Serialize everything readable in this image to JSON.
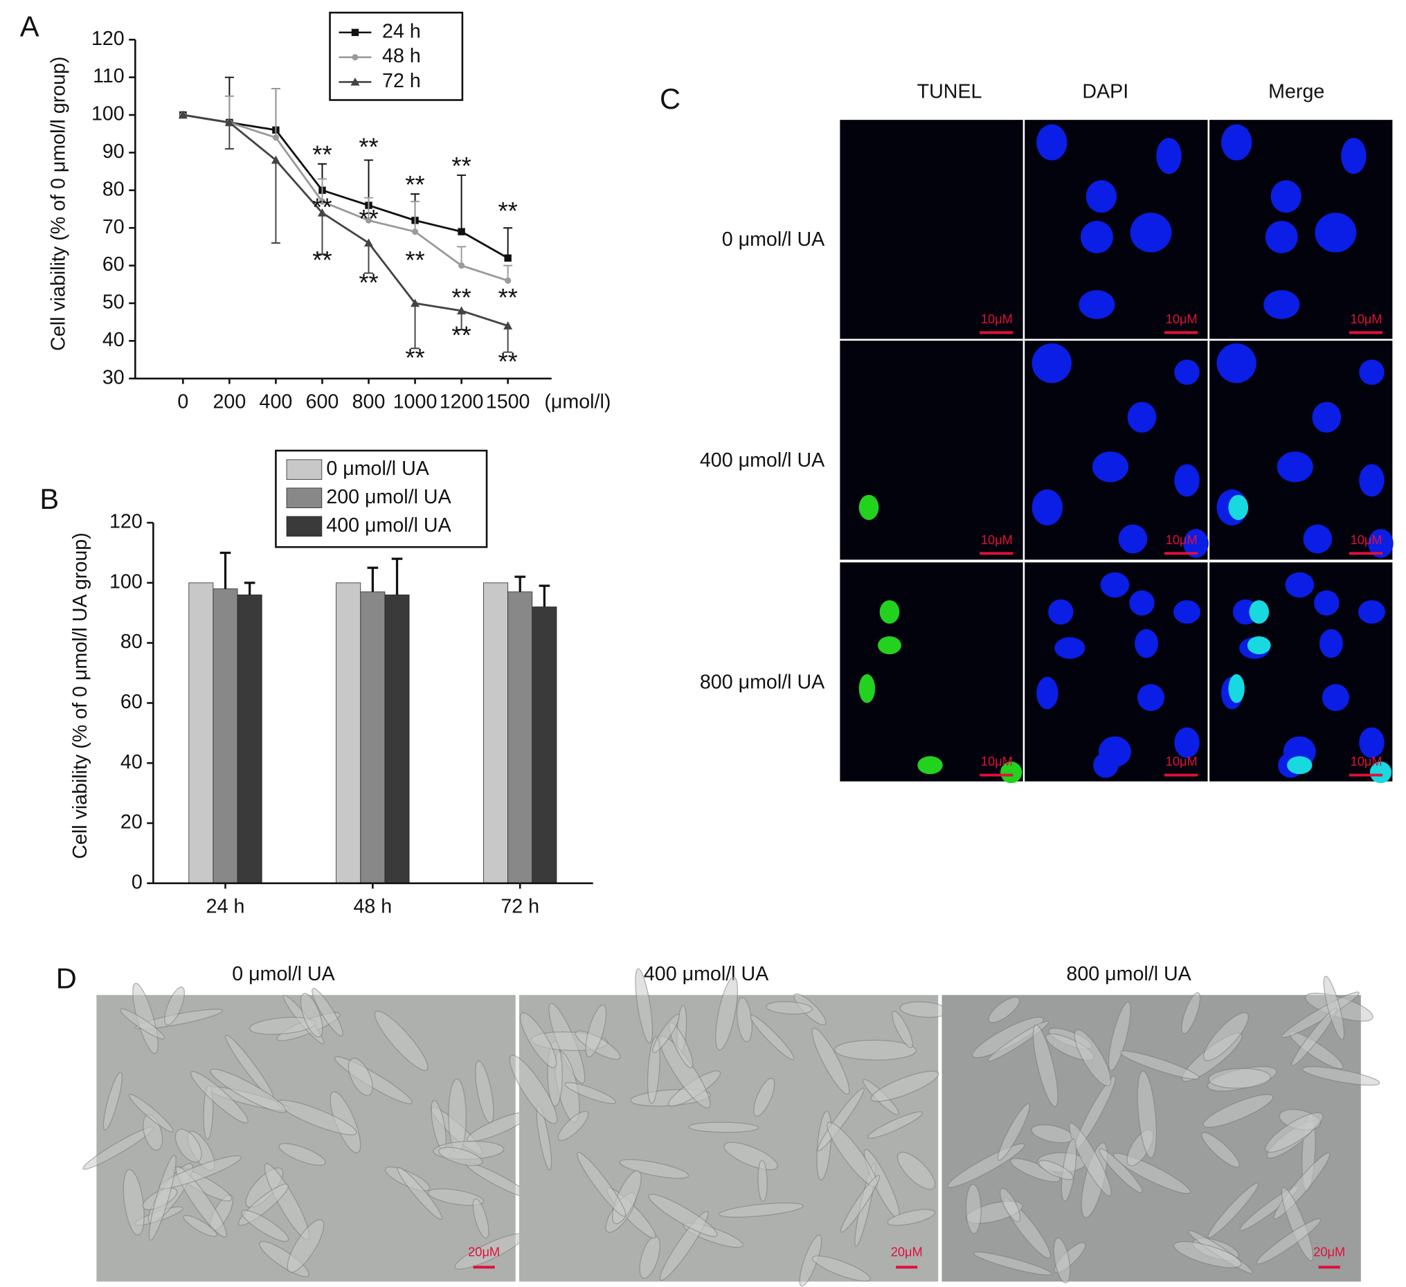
{
  "chart_data": [
    {
      "type": "line",
      "panel_label": "A",
      "y_label": "Cell viability (% of 0 μmol/l group)",
      "x_unit": "(μmol/l)",
      "categories": [
        "0",
        "200",
        "400",
        "600",
        "800",
        "1000",
        "1200",
        "1500"
      ],
      "ylim": [
        30,
        120
      ],
      "yticks": [
        30,
        40,
        50,
        60,
        70,
        80,
        90,
        100,
        110,
        120
      ],
      "legend": "top",
      "series": [
        {
          "name": "24 h",
          "color": "#111111",
          "marker": "square",
          "error_direction": "up",
          "values": [
            100,
            98,
            96,
            80,
            76,
            72,
            69,
            62
          ],
          "errors": [
            0,
            12,
            11,
            7,
            12,
            7,
            15,
            8
          ]
        },
        {
          "name": "48 h",
          "color": "#9a9a9a",
          "marker": "circle",
          "error_direction": "up",
          "values": [
            100,
            98,
            94,
            77,
            72,
            69,
            60,
            56
          ],
          "errors": [
            0,
            7,
            13,
            6,
            6,
            8,
            5,
            4
          ]
        },
        {
          "name": "72 h",
          "color": "#444444",
          "marker": "triangle",
          "error_direction": "down",
          "values": [
            100,
            98,
            88,
            74,
            66,
            50,
            48,
            44
          ],
          "errors": [
            0,
            7,
            22,
            11,
            8,
            12,
            5,
            7
          ]
        }
      ],
      "annotations": [
        {
          "text": "**",
          "category": "600",
          "y": 89
        },
        {
          "text": "**",
          "category": "800",
          "y": 91
        },
        {
          "text": "**",
          "category": "1000",
          "y": 81
        },
        {
          "text": "**",
          "category": "1200",
          "y": 86
        },
        {
          "text": "**",
          "category": "1500",
          "y": 74
        },
        {
          "text": "**",
          "category": "600",
          "y": 75
        },
        {
          "text": "**",
          "category": "800",
          "y": 72
        },
        {
          "text": "**",
          "category": "1000",
          "y": 61
        },
        {
          "text": "**",
          "category": "1200",
          "y": 51
        },
        {
          "text": "**",
          "category": "1500",
          "y": 51
        },
        {
          "text": "**",
          "category": "600",
          "y": 61
        },
        {
          "text": "**",
          "category": "800",
          "y": 55
        },
        {
          "text": "**",
          "category": "1000",
          "y": 35
        },
        {
          "text": "**",
          "category": "1200",
          "y": 41
        },
        {
          "text": "**",
          "category": "1500",
          "y": 34
        }
      ]
    },
    {
      "type": "bar",
      "panel_label": "B",
      "y_label": "Cell viability (% of 0 μmol/l UA group)",
      "categories": [
        "24 h",
        "48 h",
        "72 h"
      ],
      "ylim": [
        0,
        120
      ],
      "yticks": [
        0,
        20,
        40,
        60,
        80,
        100,
        120
      ],
      "legend": "top",
      "series": [
        {
          "name": "0 μmol/l UA",
          "color": "#c8c8c8",
          "values": [
            100,
            100,
            100
          ],
          "errors": [
            0,
            0,
            0
          ]
        },
        {
          "name": "200 μmol/l UA",
          "color": "#888888",
          "values": [
            98,
            97,
            97
          ],
          "errors": [
            12,
            8,
            5
          ]
        },
        {
          "name": "400 μmol/l UA",
          "color": "#3a3a3a",
          "values": [
            96,
            96,
            92
          ],
          "errors": [
            4,
            12,
            7
          ]
        }
      ]
    }
  ],
  "tunel_panel": {
    "label": "C",
    "columns": [
      "TUNEL",
      "DAPI",
      "Merge"
    ],
    "rows": [
      "0 μmol/l UA",
      "400 μmol/l UA",
      "800 μmol/l UA"
    ],
    "scale_bar": "10μM"
  },
  "phase_panel": {
    "label": "D",
    "columns": [
      "0 μmol/l UA",
      "400 μmol/l UA",
      "800 μmol/l UA"
    ],
    "scale_bar": "20μM"
  }
}
